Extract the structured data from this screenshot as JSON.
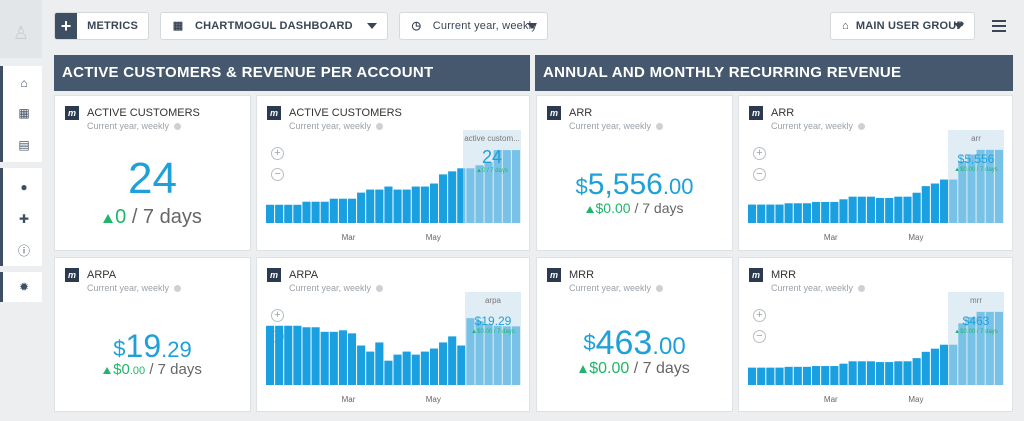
{
  "topbar": {
    "metrics_label": "METRICS",
    "dashboard_label": "CHARTMOGUL DASHBOARD",
    "period_label": "Current year, weekly",
    "group_label": "MAIN USER GROUP"
  },
  "sidebar": {
    "icons": [
      "bank-icon",
      "dashboard-icon",
      "clipboard-icon",
      "user-icon",
      "plug-icon",
      "info-icon",
      "bug-icon"
    ]
  },
  "sections": {
    "left": "ACTIVE CUSTOMERS & REVENUE PER ACCOUNT",
    "right": "ANNUAL AND MONTHLY RECURRING REVENUE"
  },
  "colors": {
    "accent": "#1fa0d8",
    "positive": "#20b56a",
    "header": "#46586e"
  },
  "subtitle": "Current year, weekly",
  "axis": {
    "months": [
      "Mar",
      "May"
    ]
  },
  "kpis": {
    "active_customers": {
      "title": "ACTIVE CUSTOMERS",
      "value": "24",
      "delta": "0",
      "period": "/ 7 days"
    },
    "arpa": {
      "title": "ARPA",
      "currency": "$",
      "int": "19",
      "dec": ".29",
      "delta_cur": "$",
      "delta_int": "0",
      "delta_dec": ".00",
      "period": "/ 7 days"
    },
    "arr": {
      "title": "ARR",
      "currency": "$",
      "int": "5,556",
      "dec": ".00",
      "delta": "$0.00",
      "period": "/ 7 days"
    },
    "mrr": {
      "title": "MRR",
      "currency": "$",
      "int": "463",
      "dec": ".00",
      "delta": "$0.00",
      "period": "/ 7 days"
    }
  },
  "charts": {
    "active_customers": {
      "title": "ACTIVE CUSTOMERS",
      "tip_label": "active custom...",
      "tip_value": "24",
      "tip_delta": "▲0 / 7 days"
    },
    "arpa": {
      "title": "ARPA",
      "tip_label": "arpa",
      "tip_value": "$19.29",
      "tip_delta": "▲$0.00 / 7 days"
    },
    "arr": {
      "title": "ARR",
      "tip_label": "arr",
      "tip_value": "$5,556",
      "tip_delta": "▲$0.00 / 7 days"
    },
    "mrr": {
      "title": "MRR",
      "tip_label": "mrr",
      "tip_value": "$463",
      "tip_delta": "▲$0.00 / 7 days"
    }
  },
  "chart_data": [
    {
      "type": "bar",
      "title": "ACTIVE CUSTOMERS",
      "x_labels": [
        "Mar",
        "May"
      ],
      "values": [
        6,
        6,
        6,
        6,
        7,
        7,
        7,
        8,
        8,
        8,
        10,
        11,
        11,
        12,
        11,
        11,
        12,
        12,
        13,
        16,
        17,
        18,
        18,
        19,
        20,
        24,
        24,
        24
      ],
      "ylim": [
        0,
        26
      ]
    },
    {
      "type": "bar",
      "title": "ARPA",
      "x_labels": [
        "Mar",
        "May"
      ],
      "values": [
        19.5,
        19.5,
        19.5,
        19.5,
        19,
        19,
        17.5,
        17.5,
        18,
        17,
        13,
        11,
        14,
        8,
        10,
        11,
        10,
        11,
        12,
        14,
        16,
        13,
        22,
        21,
        20,
        19.5,
        19.3,
        19.3
      ],
      "ylim": [
        0,
        26
      ]
    },
    {
      "type": "bar",
      "title": "ARR",
      "x_labels": [
        "Mar",
        "May"
      ],
      "values": [
        1400,
        1400,
        1400,
        1400,
        1500,
        1500,
        1500,
        1600,
        1600,
        1600,
        1800,
        2000,
        2000,
        2000,
        1900,
        1900,
        2000,
        2000,
        2300,
        2800,
        3000,
        3300,
        3300,
        4700,
        5200,
        5556,
        5556,
        5556
      ],
      "ylim": [
        0,
        6000
      ]
    },
    {
      "type": "bar",
      "title": "MRR",
      "x_labels": [
        "Mar",
        "May"
      ],
      "values": [
        110,
        110,
        110,
        110,
        115,
        115,
        115,
        120,
        120,
        120,
        135,
        150,
        150,
        150,
        145,
        145,
        150,
        150,
        170,
        210,
        230,
        255,
        255,
        390,
        430,
        463,
        463,
        463
      ],
      "ylim": [
        0,
        500
      ]
    }
  ]
}
